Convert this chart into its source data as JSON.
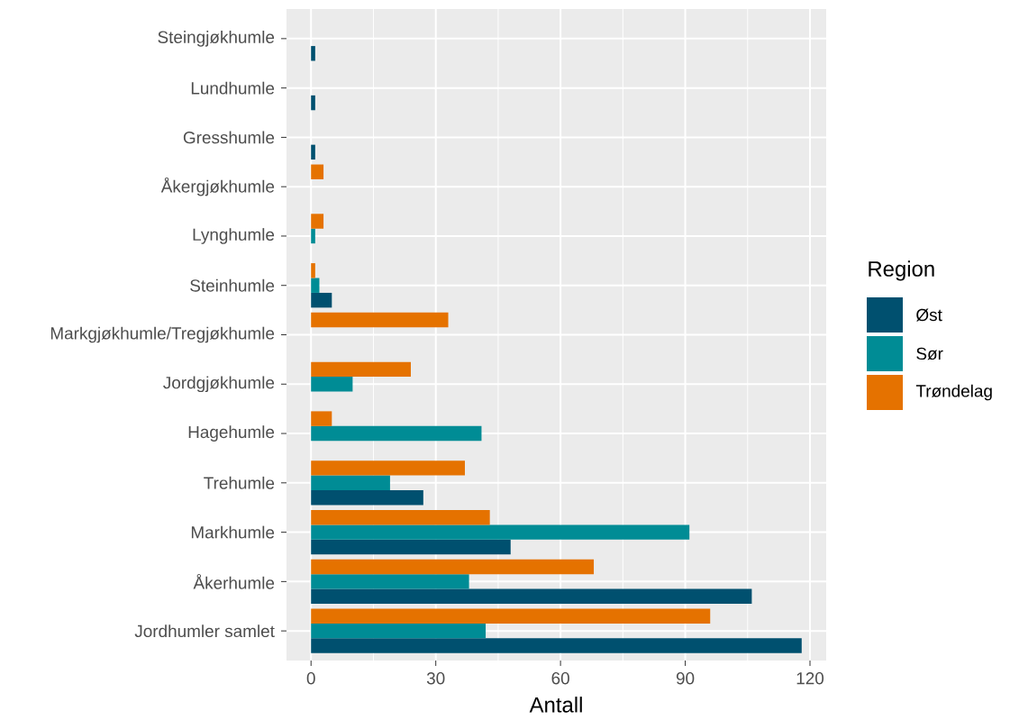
{
  "chart_data": {
    "type": "bar",
    "orientation": "horizontal",
    "xlabel": "Antall",
    "legend_title": "Region",
    "legend": "right",
    "grid": true,
    "categories": [
      "Steingjøkhumle",
      "Lundhumle",
      "Gresshumle",
      "Åkergjøkhumle",
      "Lynghumle",
      "Steinhumle",
      "Markgjøkhumle/Tregjøkhumle",
      "Jordgjøkhumle",
      "Hagehumle",
      "Trehumle",
      "Markhumle",
      "Åkerhumle",
      "Jordhumler samlet"
    ],
    "series": [
      {
        "name": "Øst",
        "color": "#00506f",
        "values": [
          1,
          1,
          1,
          null,
          null,
          5,
          null,
          null,
          null,
          27,
          48,
          106,
          118
        ]
      },
      {
        "name": "Sør",
        "color": "#008c95",
        "values": [
          null,
          null,
          null,
          null,
          1,
          2,
          null,
          10,
          41,
          19,
          91,
          38,
          42
        ]
      },
      {
        "name": "Trøndelag",
        "color": "#e57200",
        "values": [
          null,
          null,
          null,
          3,
          3,
          1,
          33,
          24,
          5,
          37,
          43,
          68,
          96
        ]
      }
    ],
    "xlim": [
      -5.9,
      123.9
    ],
    "xticks": [
      0,
      30,
      60,
      90,
      120
    ]
  }
}
